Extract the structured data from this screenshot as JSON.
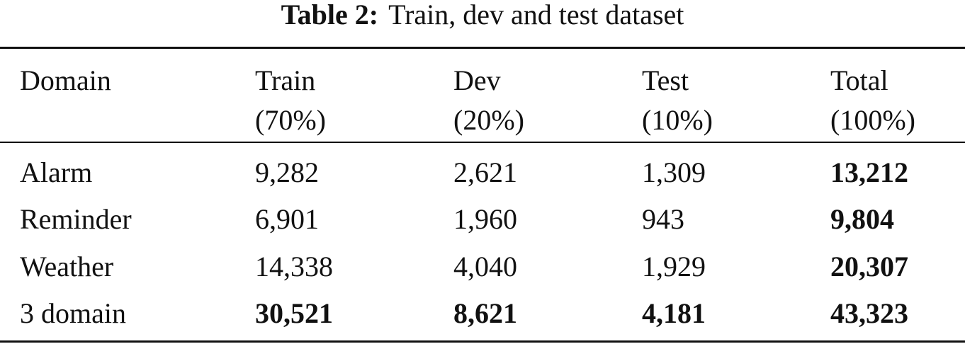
{
  "caption": {
    "label": "Table 2:",
    "text": "Train, dev and test dataset"
  },
  "table": {
    "headers": [
      {
        "line1": "Domain",
        "line2": ""
      },
      {
        "line1": "Train",
        "line2": "(70%)"
      },
      {
        "line1": "Dev",
        "line2": "(20%)"
      },
      {
        "line1": "Test",
        "line2": "(10%)"
      },
      {
        "line1": "Total",
        "line2": "(100%)"
      }
    ],
    "rows": [
      {
        "domain": "Alarm",
        "train": "9,282",
        "dev": "2,621",
        "test": "1,309",
        "total": "13,212"
      },
      {
        "domain": "Reminder",
        "train": "6,901",
        "dev": "1,960",
        "test": "943",
        "total": "9,804"
      },
      {
        "domain": "Weather",
        "train": "14,338",
        "dev": "4,040",
        "test": "1,929",
        "total": "20,307"
      },
      {
        "domain": "3 domain",
        "train": "30,521",
        "dev": "8,621",
        "test": "4,181",
        "total": "43,323"
      }
    ]
  }
}
